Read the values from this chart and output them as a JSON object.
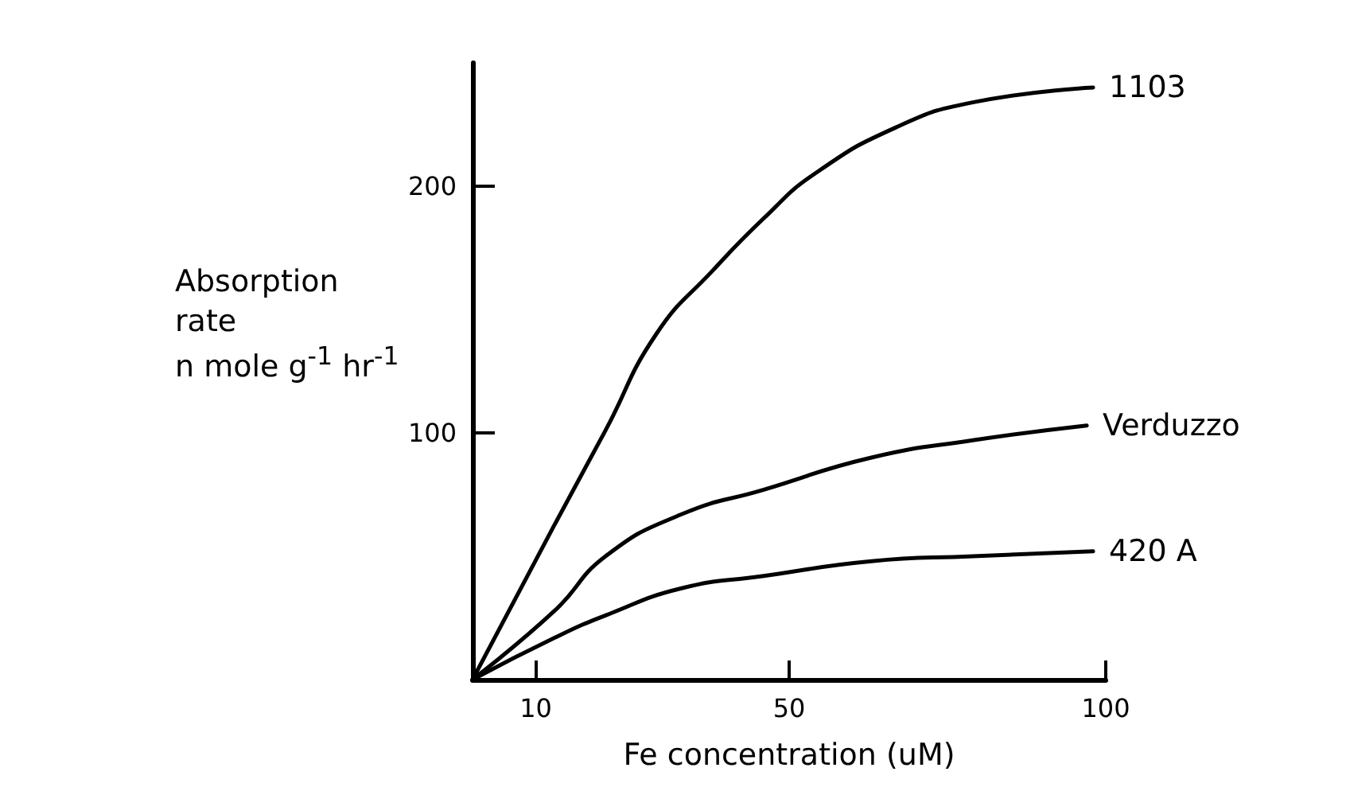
{
  "chart_data": {
    "type": "line",
    "xlabel": "Fe concentration (uM)",
    "ylabel": "Absorption\nrate\nn mole g$^{-1}$ hr$^{-1}$",
    "xlim": [
      0,
      100
    ],
    "xticks": [
      10,
      50,
      100
    ],
    "ylim": [
      0,
      250
    ],
    "yticks": [
      100,
      200
    ],
    "grid": false,
    "legend": false,
    "marker": "none",
    "line_style": "solid",
    "series": [
      {
        "name": "1103",
        "color": "#000000",
        "x": [
          0,
          13,
          21,
          29,
          38,
          46,
          54,
          67,
          79,
          98
        ],
        "values": [
          0,
          63,
          101,
          140,
          166,
          187,
          205,
          224,
          234,
          240
        ]
      },
      {
        "name": "Verduzzo",
        "color": "#000000",
        "x": [
          0,
          13,
          21,
          33,
          46,
          63,
          79,
          97
        ],
        "values": [
          0,
          28,
          50,
          67,
          77,
          90,
          97,
          103
        ]
      },
      {
        "name": "420 A",
        "color": "#000000",
        "x": [
          0,
          13,
          21,
          33,
          46,
          63,
          79,
          98
        ],
        "values": [
          0,
          17,
          26,
          37,
          42,
          48,
          50,
          52
        ]
      }
    ]
  }
}
